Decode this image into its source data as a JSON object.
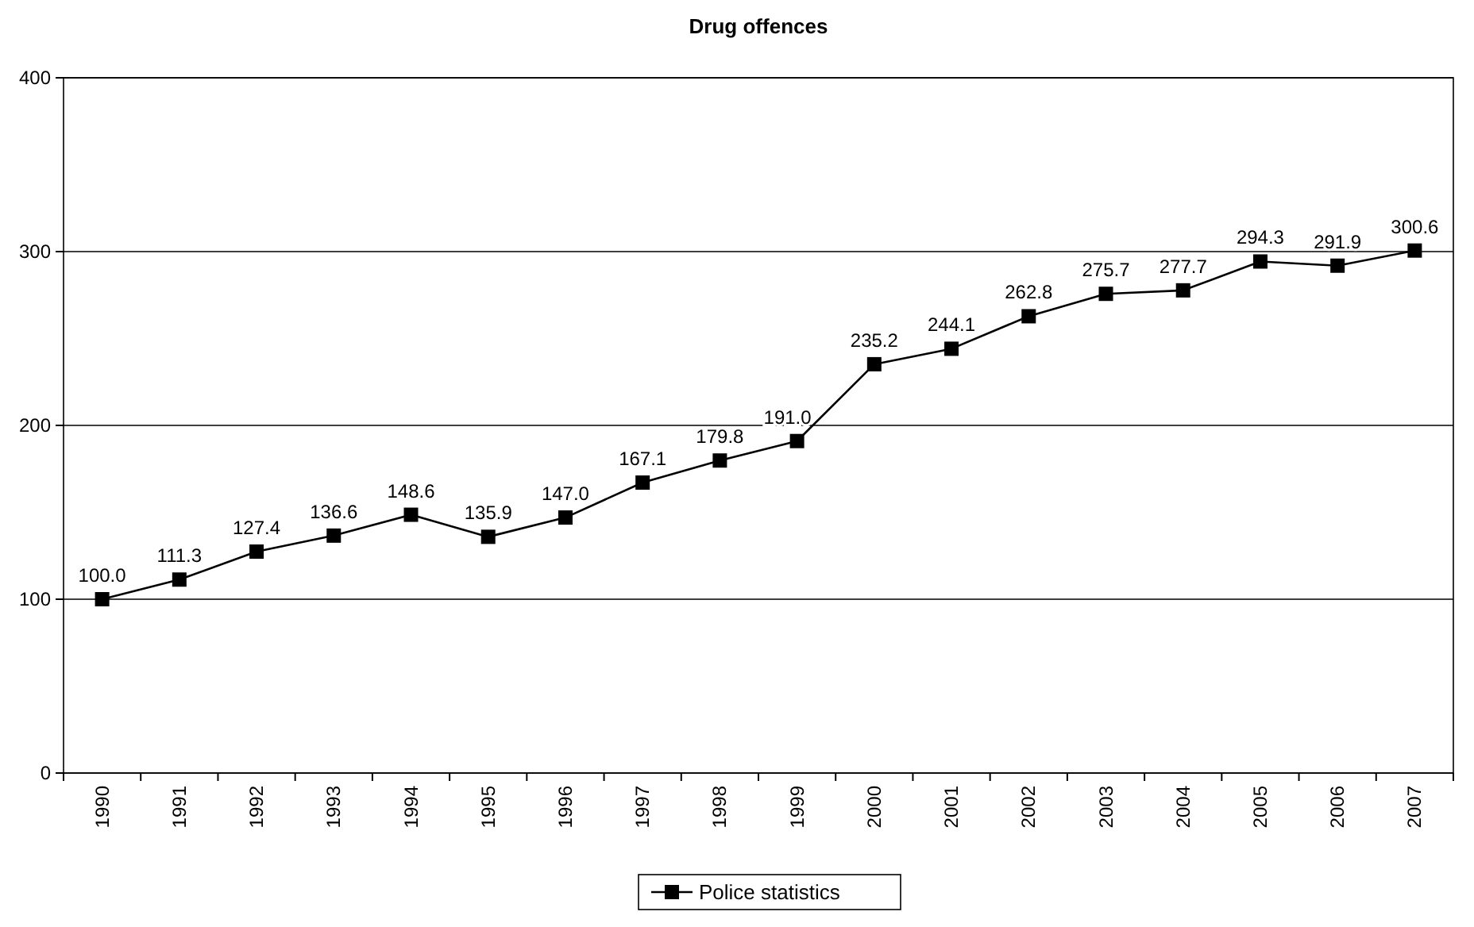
{
  "chart_data": {
    "type": "line",
    "title": "Drug offences",
    "categories": [
      "1990",
      "1991",
      "1992",
      "1993",
      "1994",
      "1995",
      "1996",
      "1997",
      "1998",
      "1999",
      "2000",
      "2001",
      "2002",
      "2003",
      "2004",
      "2005",
      "2006",
      "2007"
    ],
    "series": [
      {
        "name": "Police statistics",
        "color": "#000000",
        "values": [
          100.0,
          111.3,
          127.4,
          136.6,
          148.6,
          135.9,
          147.0,
          167.1,
          179.8,
          191.0,
          235.2,
          244.1,
          262.8,
          275.7,
          277.7,
          294.3,
          291.9,
          300.6
        ],
        "value_labels": [
          "100.0",
          "111.3",
          "127.4",
          "136.6",
          "148.6",
          "135.9",
          "147.0",
          "167.1",
          "179.8",
          "191.0",
          "235.2",
          "244.1",
          "262.8",
          "275.7",
          "277.7",
          "294.3",
          "291.9",
          "300.6"
        ]
      }
    ],
    "ylim": [
      0,
      400
    ],
    "yticks": [
      0,
      100,
      200,
      300,
      400
    ],
    "grid": "y",
    "legend": "bottom",
    "marker": "square",
    "line_style": "solid"
  }
}
